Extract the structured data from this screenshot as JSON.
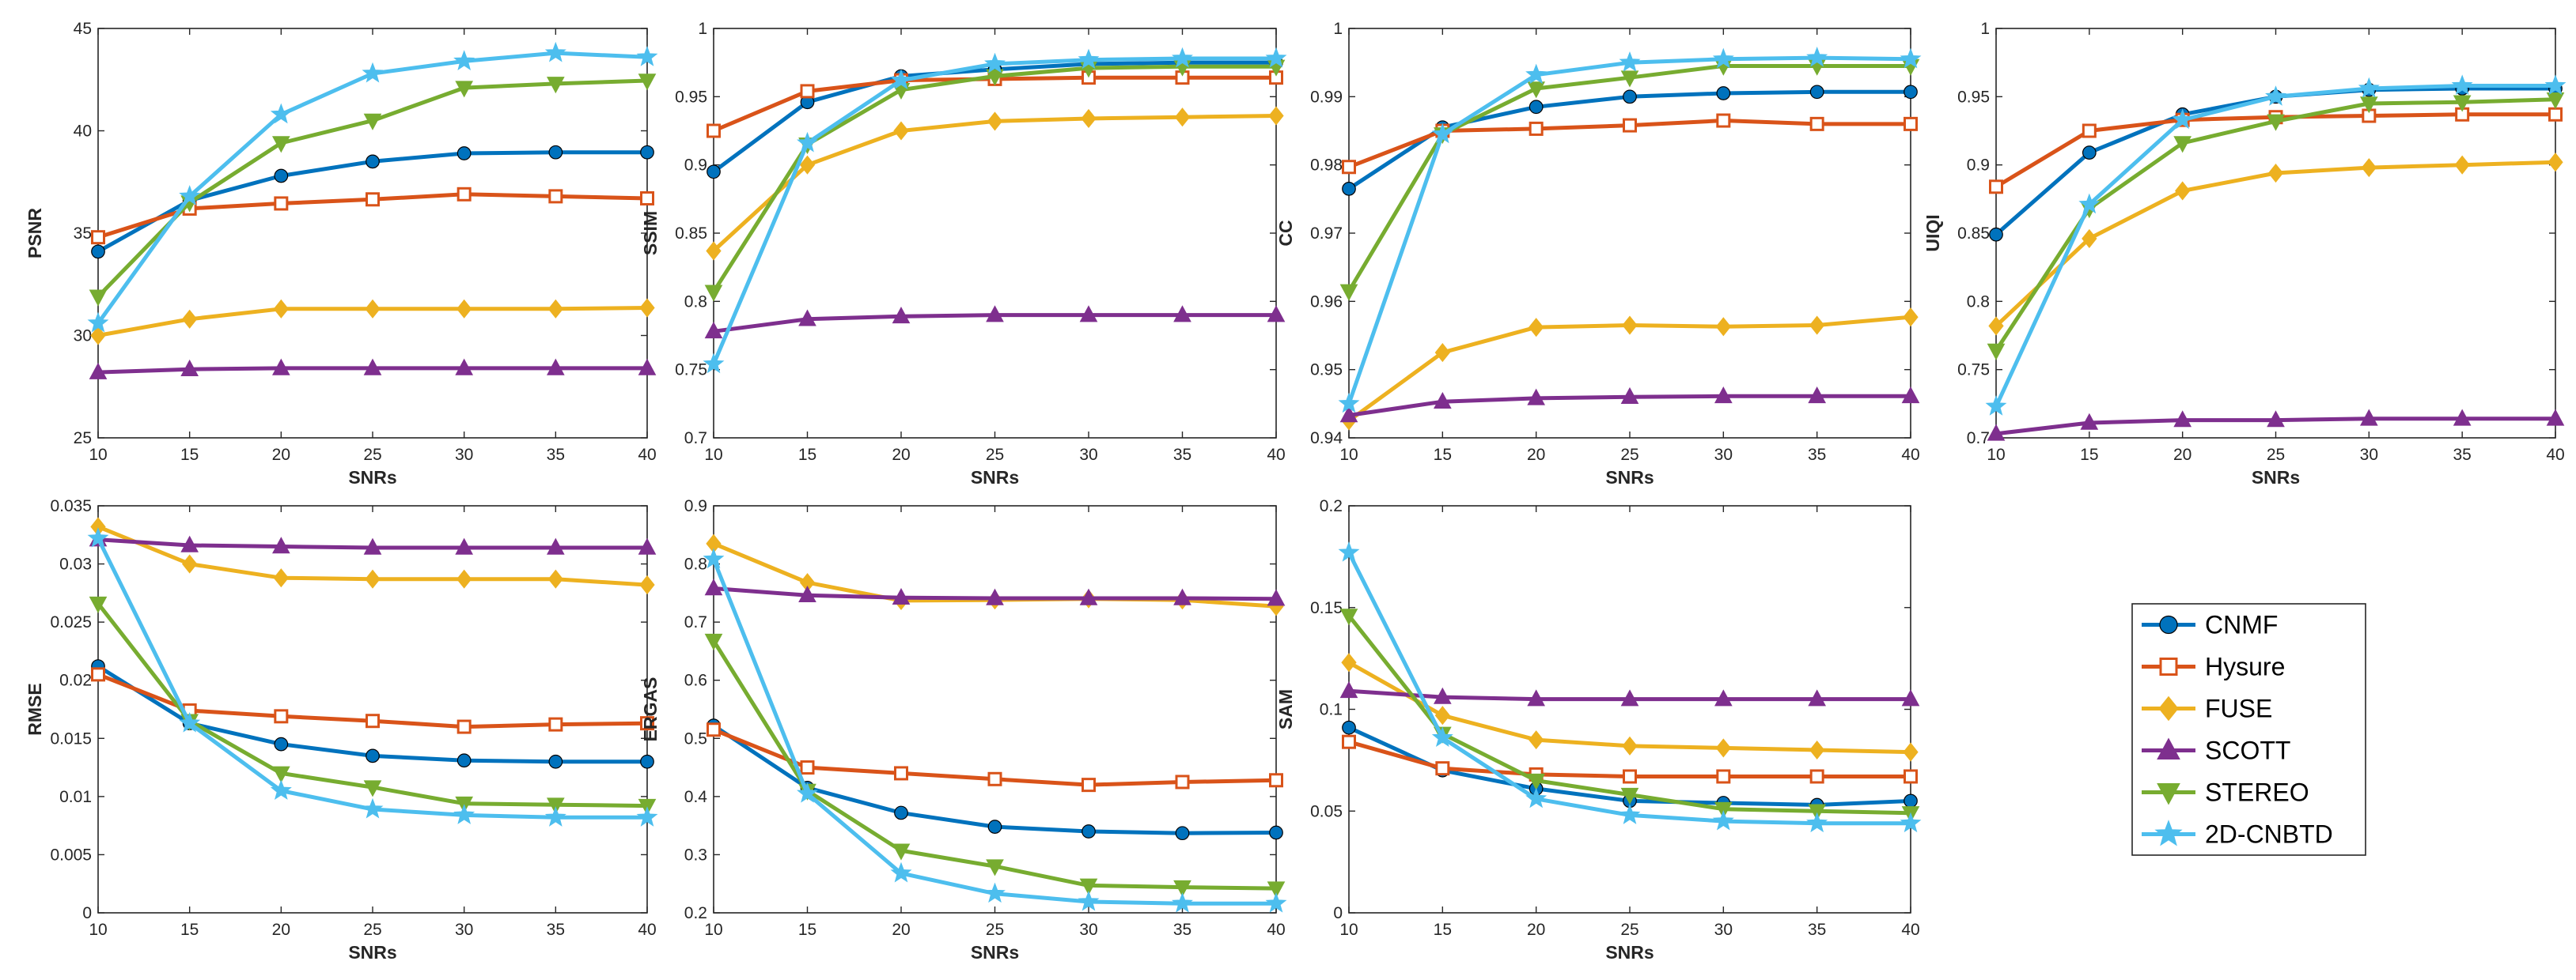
{
  "chart_data": {
    "type": "line",
    "x": [
      10,
      15,
      20,
      25,
      30,
      35,
      40
    ],
    "xlabel": "SNRs",
    "series_styles": [
      {
        "name": "CNMF",
        "color": "#0072BD",
        "marker": "circle"
      },
      {
        "name": "Hysure",
        "color": "#D95319",
        "marker": "square"
      },
      {
        "name": "FUSE",
        "color": "#EDB120",
        "marker": "diamond"
      },
      {
        "name": "SCOTT",
        "color": "#7E2F8E",
        "marker": "triangle-up"
      },
      {
        "name": "STEREO",
        "color": "#77AC30",
        "marker": "triangle-down"
      },
      {
        "name": "2D-CNBTD",
        "color": "#4DBEEE",
        "marker": "star"
      }
    ],
    "legend": {
      "position": "right"
    },
    "grid": false,
    "panels": [
      {
        "ylabel": "PSNR",
        "ylim": [
          25,
          45
        ],
        "xticks": [
          "10",
          "15",
          "20",
          "25",
          "30",
          "35",
          "40"
        ],
        "yticks": [
          "25",
          "30",
          "35",
          "40",
          "45"
        ],
        "ytickvals": [
          25,
          30,
          35,
          40,
          45
        ],
        "series": [
          {
            "name": "CNMF",
            "values": [
              34.1,
              36.6,
              37.8,
              38.5,
              38.9,
              38.95,
              38.95
            ]
          },
          {
            "name": "Hysure",
            "values": [
              34.8,
              36.2,
              36.45,
              36.65,
              36.9,
              36.8,
              36.7
            ]
          },
          {
            "name": "FUSE",
            "values": [
              30.0,
              30.8,
              31.3,
              31.3,
              31.3,
              31.3,
              31.35
            ]
          },
          {
            "name": "SCOTT",
            "values": [
              28.2,
              28.35,
              28.4,
              28.4,
              28.4,
              28.4,
              28.4
            ]
          },
          {
            "name": "STEREO",
            "values": [
              31.9,
              36.5,
              39.4,
              40.5,
              42.1,
              42.3,
              42.45
            ]
          },
          {
            "name": "2D-CNBTD",
            "values": [
              30.6,
              36.8,
              40.8,
              42.8,
              43.4,
              43.8,
              43.6
            ]
          }
        ]
      },
      {
        "ylabel": "SSIM",
        "ylim": [
          0.7,
          1
        ],
        "xticks": [
          "10",
          "15",
          "20",
          "25",
          "30",
          "35",
          "40"
        ],
        "yticks": [
          "0.7",
          "0.75",
          "0.8",
          "0.85",
          "0.9",
          "0.95",
          "1"
        ],
        "ytickvals": [
          0.7,
          0.75,
          0.8,
          0.85,
          0.9,
          0.95,
          1
        ],
        "series": [
          {
            "name": "CNMF",
            "values": [
              0.895,
              0.946,
              0.965,
              0.97,
              0.974,
              0.975,
              0.975
            ]
          },
          {
            "name": "Hysure",
            "values": [
              0.925,
              0.954,
              0.962,
              0.963,
              0.964,
              0.964,
              0.964
            ]
          },
          {
            "name": "FUSE",
            "values": [
              0.837,
              0.9,
              0.925,
              0.932,
              0.934,
              0.935,
              0.936
            ]
          },
          {
            "name": "SCOTT",
            "values": [
              0.778,
              0.787,
              0.789,
              0.79,
              0.79,
              0.79,
              0.79
            ]
          },
          {
            "name": "STEREO",
            "values": [
              0.807,
              0.915,
              0.955,
              0.965,
              0.971,
              0.972,
              0.972
            ]
          },
          {
            "name": "2D-CNBTD",
            "values": [
              0.754,
              0.916,
              0.962,
              0.974,
              0.977,
              0.978,
              0.978
            ]
          }
        ]
      },
      {
        "ylabel": "CC",
        "ylim": [
          0.94,
          1
        ],
        "xticks": [
          "10",
          "15",
          "20",
          "25",
          "30",
          "35",
          "40"
        ],
        "yticks": [
          "0.94",
          "0.95",
          "0.96",
          "0.97",
          "0.98",
          "0.99",
          "1"
        ],
        "ytickvals": [
          0.94,
          0.95,
          0.96,
          0.97,
          0.98,
          0.99,
          1
        ],
        "series": [
          {
            "name": "CNMF",
            "values": [
              0.9765,
              0.9855,
              0.9885,
              0.99,
              0.9905,
              0.9907,
              0.9907
            ]
          },
          {
            "name": "Hysure",
            "values": [
              0.9797,
              0.985,
              0.9853,
              0.9858,
              0.9865,
              0.986,
              0.986
            ]
          },
          {
            "name": "FUSE",
            "values": [
              0.9425,
              0.9525,
              0.9562,
              0.9565,
              0.9563,
              0.9565,
              0.9577
            ]
          },
          {
            "name": "SCOTT",
            "values": [
              0.9433,
              0.9453,
              0.9458,
              0.946,
              0.9461,
              0.9461,
              0.9461
            ]
          },
          {
            "name": "STEREO",
            "values": [
              0.9615,
              0.9845,
              0.9912,
              0.9928,
              0.9945,
              0.9945,
              0.9945
            ]
          },
          {
            "name": "2D-CNBTD",
            "values": [
              0.945,
              0.9845,
              0.9932,
              0.995,
              0.9955,
              0.9957,
              0.9955
            ]
          }
        ]
      },
      {
        "ylabel": "UIQI",
        "ylim": [
          0.7,
          1
        ],
        "xticks": [
          "10",
          "15",
          "20",
          "25",
          "30",
          "35",
          "40"
        ],
        "yticks": [
          "0.7",
          "0.75",
          "0.8",
          "0.85",
          "0.9",
          "0.95",
          "1"
        ],
        "ytickvals": [
          0.7,
          0.75,
          0.8,
          0.85,
          0.9,
          0.95,
          1
        ],
        "series": [
          {
            "name": "CNMF",
            "values": [
              0.849,
              0.909,
              0.937,
              0.95,
              0.955,
              0.956,
              0.956
            ]
          },
          {
            "name": "Hysure",
            "values": [
              0.884,
              0.925,
              0.933,
              0.935,
              0.936,
              0.937,
              0.937
            ]
          },
          {
            "name": "FUSE",
            "values": [
              0.782,
              0.846,
              0.881,
              0.894,
              0.898,
              0.9,
              0.902
            ]
          },
          {
            "name": "SCOTT",
            "values": [
              0.703,
              0.711,
              0.713,
              0.713,
              0.714,
              0.714,
              0.714
            ]
          },
          {
            "name": "STEREO",
            "values": [
              0.764,
              0.868,
              0.916,
              0.932,
              0.945,
              0.946,
              0.948
            ]
          },
          {
            "name": "2D-CNBTD",
            "values": [
              0.723,
              0.871,
              0.933,
              0.95,
              0.956,
              0.958,
              0.958
            ]
          }
        ]
      },
      {
        "ylabel": "RMSE",
        "ylim": [
          0,
          0.035
        ],
        "xticks": [
          "10",
          "15",
          "20",
          "25",
          "30",
          "35",
          "40"
        ],
        "yticks": [
          "0",
          "0.005",
          "0.01",
          "0.015",
          "0.02",
          "0.025",
          "0.03",
          "0.035"
        ],
        "ytickvals": [
          0,
          0.005,
          0.01,
          0.015,
          0.02,
          0.025,
          0.03,
          0.035
        ],
        "series": [
          {
            "name": "CNMF",
            "values": [
              0.0212,
              0.0163,
              0.0145,
              0.0135,
              0.0131,
              0.013,
              0.013
            ]
          },
          {
            "name": "Hysure",
            "values": [
              0.0205,
              0.0174,
              0.0169,
              0.0165,
              0.016,
              0.0162,
              0.0163
            ]
          },
          {
            "name": "FUSE",
            "values": [
              0.0332,
              0.03,
              0.0288,
              0.0287,
              0.0287,
              0.0287,
              0.0282
            ]
          },
          {
            "name": "SCOTT",
            "values": [
              0.0321,
              0.0316,
              0.0315,
              0.0314,
              0.0314,
              0.0314,
              0.0314
            ]
          },
          {
            "name": "STEREO",
            "values": [
              0.0266,
              0.0165,
              0.012,
              0.0108,
              0.0094,
              0.0093,
              0.0092
            ]
          },
          {
            "name": "2D-CNBTD",
            "values": [
              0.0322,
              0.0163,
              0.0105,
              0.0089,
              0.0084,
              0.0082,
              0.0082
            ]
          }
        ]
      },
      {
        "ylabel": "ERGAS",
        "ylim": [
          0.2,
          0.9
        ],
        "xticks": [
          "10",
          "15",
          "20",
          "25",
          "30",
          "35",
          "40"
        ],
        "yticks": [
          "0.2",
          "0.3",
          "0.4",
          "0.5",
          "0.6",
          "0.7",
          "0.8",
          "0.9"
        ],
        "ytickvals": [
          0.2,
          0.3,
          0.4,
          0.5,
          0.6,
          0.7,
          0.8,
          0.9
        ],
        "series": [
          {
            "name": "CNMF",
            "values": [
              0.522,
              0.415,
              0.372,
              0.348,
              0.34,
              0.337,
              0.338
            ]
          },
          {
            "name": "Hysure",
            "values": [
              0.515,
              0.45,
              0.44,
              0.43,
              0.42,
              0.425,
              0.428
            ]
          },
          {
            "name": "FUSE",
            "values": [
              0.835,
              0.768,
              0.737,
              0.738,
              0.74,
              0.738,
              0.727
            ]
          },
          {
            "name": "SCOTT",
            "values": [
              0.758,
              0.746,
              0.742,
              0.741,
              0.741,
              0.741,
              0.74
            ]
          },
          {
            "name": "STEREO",
            "values": [
              0.668,
              0.41,
              0.307,
              0.28,
              0.247,
              0.244,
              0.242
            ]
          },
          {
            "name": "2D-CNBTD",
            "values": [
              0.808,
              0.405,
              0.268,
              0.233,
              0.219,
              0.216,
              0.216
            ]
          }
        ]
      },
      {
        "ylabel": "SAM",
        "ylim": [
          0,
          0.2
        ],
        "xticks": [
          "10",
          "15",
          "20",
          "25",
          "30",
          "35",
          "40"
        ],
        "yticks": [
          "0",
          "0.05",
          "0.1",
          "0.15",
          "0.2"
        ],
        "ytickvals": [
          0,
          0.05,
          0.1,
          0.15,
          0.2
        ],
        "series": [
          {
            "name": "CNMF",
            "values": [
              0.091,
              0.07,
              0.061,
              0.055,
              0.054,
              0.053,
              0.055
            ]
          },
          {
            "name": "Hysure",
            "values": [
              0.084,
              0.071,
              0.068,
              0.067,
              0.067,
              0.067,
              0.067
            ]
          },
          {
            "name": "FUSE",
            "values": [
              0.123,
              0.097,
              0.085,
              0.082,
              0.081,
              0.08,
              0.079
            ]
          },
          {
            "name": "SCOTT",
            "values": [
              0.109,
              0.106,
              0.105,
              0.105,
              0.105,
              0.105,
              0.105
            ]
          },
          {
            "name": "STEREO",
            "values": [
              0.146,
              0.088,
              0.065,
              0.058,
              0.051,
              0.05,
              0.049
            ]
          },
          {
            "name": "2D-CNBTD",
            "values": [
              0.177,
              0.086,
              0.056,
              0.048,
              0.045,
              0.044,
              0.044
            ]
          }
        ]
      }
    ]
  }
}
